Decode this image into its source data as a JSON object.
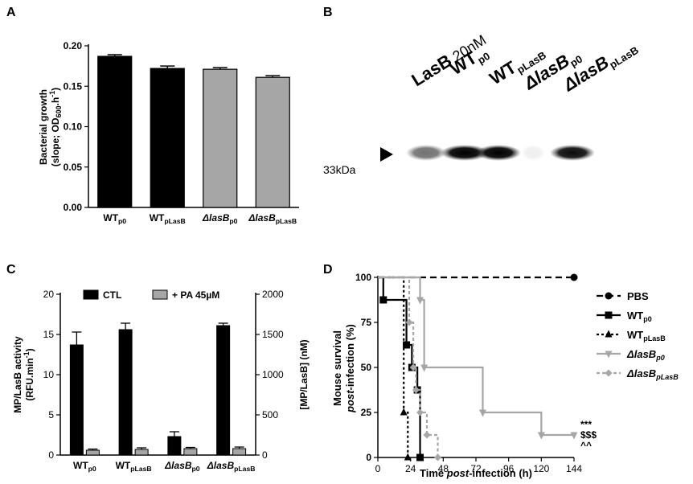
{
  "chart_data": [
    {
      "panel": "A",
      "type": "bar",
      "ylabel_line1": "Bacterial growth",
      "ylabel_line2_pre": "(slope; OD",
      "ylabel_line2_sub": "600",
      "ylabel_line2_post": ".h",
      "ylabel_line2_sup": "-1",
      "ylabel_line2_end": ")",
      "ylim": [
        0,
        0.2
      ],
      "yticks": [
        "0.00",
        "0.05",
        "0.10",
        "0.15",
        "0.20"
      ],
      "categories": [
        {
          "base": "WT",
          "sub": "p0",
          "italic": false
        },
        {
          "base": "WT",
          "sub": "pLasB",
          "italic": false
        },
        {
          "base": "ΔlasB",
          "sub": "p0",
          "italic": true
        },
        {
          "base": "ΔlasB",
          "sub": "pLasB",
          "italic": true
        }
      ],
      "values": [
        0.187,
        0.172,
        0.171,
        0.161
      ],
      "errors": [
        0.002,
        0.003,
        0.002,
        0.002
      ],
      "colors": [
        "#000000",
        "#000000",
        "#a6a6a6",
        "#a6a6a6"
      ]
    },
    {
      "panel": "B",
      "type": "blot",
      "lanes": [
        {
          "base": "LasB",
          "rest": "20nM",
          "sub": "",
          "italic": false
        },
        {
          "base": "WT",
          "rest": "",
          "sub": "p0",
          "italic": false
        },
        {
          "base": "WT",
          "rest": "",
          "sub": "pLasB",
          "italic": false
        },
        {
          "base": "ΔlasB",
          "rest": "",
          "sub": "p0",
          "italic": true
        },
        {
          "base": "ΔlasB",
          "rest": "",
          "sub": "pLasB",
          "italic": true
        }
      ],
      "band_label": "33kDa",
      "band_intensity": [
        0.55,
        1.0,
        1.0,
        0.06,
        0.95
      ]
    },
    {
      "panel": "C",
      "type": "bar",
      "ylabel_line1": "MP/LasB activity",
      "ylabel_line2_pre": "(RFU.min",
      "ylabel_line2_sup": "-1",
      "ylabel_line2_end": ")",
      "y2label": "[MP/LasB] (nM)",
      "ylim": [
        0,
        20
      ],
      "y2lim": [
        0,
        2000
      ],
      "yticks": [
        "0",
        "5",
        "10",
        "15",
        "20"
      ],
      "y2ticks": [
        "0",
        "500",
        "1000",
        "1500",
        "2000"
      ],
      "categories": [
        {
          "base": "WT",
          "sub": "p0",
          "italic": false
        },
        {
          "base": "WT",
          "sub": "pLasB",
          "italic": false
        },
        {
          "base": "ΔlasB",
          "sub": "p0",
          "italic": true
        },
        {
          "base": "ΔlasB",
          "sub": "pLasB",
          "italic": true
        }
      ],
      "series": [
        {
          "name": "CTL",
          "color": "#000000",
          "values": [
            13.7,
            15.6,
            2.3,
            16.1
          ],
          "errors": [
            1.6,
            0.8,
            0.6,
            0.3
          ]
        },
        {
          "name": "+ PA 45µM",
          "color": "#a6a6a6",
          "values": [
            0.6,
            0.7,
            0.8,
            0.8
          ],
          "errors": [
            0.15,
            0.2,
            0.15,
            0.2
          ]
        }
      ]
    },
    {
      "panel": "D",
      "type": "line",
      "ylabel_line1": "Mouse survival",
      "ylabel_line2_pre": "post",
      "ylabel_line2_post": "-infection (%)",
      "xlabel_pre": "Time ",
      "xlabel_ital": "post",
      "xlabel_post": "-infection (h)",
      "xlim": [
        0,
        144
      ],
      "ylim": [
        0,
        100
      ],
      "xticks": [
        "0",
        "24",
        "48",
        "72",
        "96",
        "120",
        "144"
      ],
      "yticks": [
        "0",
        "25",
        "50",
        "75",
        "100"
      ],
      "significance": [
        "***",
        "$$$",
        "^^"
      ],
      "series": [
        {
          "name": "PBS",
          "italic": false,
          "sub": "",
          "color": "#000000",
          "dash": "8,5",
          "marker": "circle",
          "x": [
            0,
            144
          ],
          "y": [
            100,
            100
          ],
          "markers_x": [
            144
          ],
          "markers_y": [
            100
          ]
        },
        {
          "name": "WT",
          "italic": false,
          "sub": "p0",
          "color": "#000000",
          "dash": "",
          "marker": "square",
          "x": [
            0,
            4,
            21,
            25,
            29,
            31
          ],
          "y": [
            100,
            87.5,
            62.5,
            50,
            37.5,
            0
          ],
          "markers_x": [
            4,
            21,
            25,
            29,
            31
          ],
          "markers_y": [
            87.5,
            62.5,
            50,
            37.5,
            0
          ]
        },
        {
          "name": "WT",
          "italic": false,
          "sub": "pLasB",
          "color": "#000000",
          "dash": "3,3",
          "marker": "triangle-up",
          "x": [
            0,
            19,
            22
          ],
          "y": [
            100,
            25,
            0
          ],
          "markers_x": [
            19,
            22
          ],
          "markers_y": [
            25,
            0
          ]
        },
        {
          "name": "ΔlasB",
          "italic": true,
          "sub": "p0",
          "color": "#a6a6a6",
          "dash": "",
          "marker": "triangle-down",
          "x": [
            0,
            31,
            34,
            77,
            120,
            144
          ],
          "y": [
            100,
            87.5,
            50,
            25,
            12.5,
            12.5
          ],
          "markers_x": [
            31,
            34,
            77,
            120,
            144
          ],
          "markers_y": [
            87.5,
            50,
            25,
            12.5,
            12.5
          ]
        },
        {
          "name": "ΔlasB",
          "italic": true,
          "sub": "pLasB",
          "color": "#a6a6a6",
          "dash": "4,3",
          "marker": "diamond",
          "x": [
            0,
            23,
            26,
            28,
            31,
            36,
            44
          ],
          "y": [
            100,
            75,
            50,
            37.5,
            25,
            12.5,
            0
          ],
          "markers_x": [
            23,
            26,
            28,
            31,
            36,
            44
          ],
          "markers_y": [
            75,
            50,
            37.5,
            25,
            12.5,
            0
          ]
        }
      ]
    }
  ],
  "panel_labels": [
    "A",
    "B",
    "C",
    "D"
  ]
}
